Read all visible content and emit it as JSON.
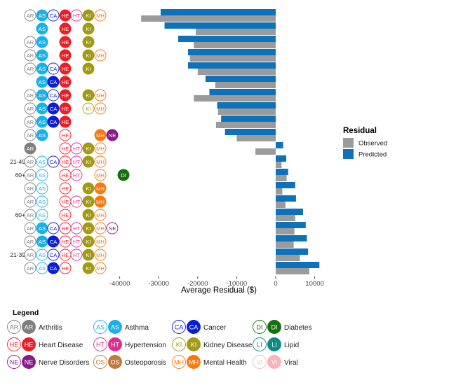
{
  "chart_data": {
    "type": "bar",
    "orientation": "horizontal",
    "xlabel": "Average Residual ($)",
    "xlim": [
      -45000,
      15000
    ],
    "xticks": [
      -40000,
      -30000,
      -20000,
      -10000,
      0,
      10000
    ],
    "xtick_labels": [
      "-40000",
      "-30000",
      "-20000",
      "-10000",
      "0",
      "10000"
    ],
    "grid": false,
    "legend_title": "Residual",
    "legend_position": "right",
    "series": [
      {
        "name": "Observed",
        "color": "#9b9b9b",
        "values": [
          -34500,
          -20500,
          -21000,
          -22000,
          -20000,
          -15500,
          -21000,
          -14800,
          -15300,
          -10000,
          -5200,
          1500,
          2800,
          1700,
          2500,
          5000,
          4800,
          4600,
          6200,
          8600
        ]
      },
      {
        "name": "Predicted",
        "color": "#0e72ba",
        "values": [
          -29500,
          -28500,
          -25000,
          -22500,
          -22500,
          -18000,
          -17000,
          -15000,
          -14000,
          -13000,
          1900,
          2700,
          3200,
          5000,
          5200,
          7000,
          7700,
          8000,
          8300,
          11200
        ]
      }
    ],
    "rows": [
      {
        "age": "",
        "cond": [
          [
            "AR",
            "o"
          ],
          [
            "AS",
            "f"
          ],
          [
            "CA",
            "o"
          ],
          [
            "HE",
            "f"
          ],
          [
            "HT",
            "o"
          ],
          [
            "KI",
            "f"
          ],
          [
            "MH",
            "o"
          ]
        ]
      },
      {
        "age": "",
        "cond": [
          [
            "AS",
            "f"
          ],
          [
            "HE",
            "f"
          ],
          [
            "KI",
            "f"
          ]
        ]
      },
      {
        "age": "",
        "cond": [
          [
            "AR",
            "o"
          ],
          [
            "AS",
            "f"
          ],
          [
            "HE",
            "f"
          ],
          [
            "KI",
            "f"
          ]
        ]
      },
      {
        "age": "",
        "cond": [
          [
            "AR",
            "o"
          ],
          [
            "AS",
            "f"
          ],
          [
            "HE",
            "f"
          ],
          [
            "KI",
            "f"
          ],
          [
            "MH",
            "o"
          ]
        ]
      },
      {
        "age": "",
        "cond": [
          [
            "AR",
            "o"
          ],
          [
            "AS",
            "f"
          ],
          [
            "CA",
            "o"
          ],
          [
            "HE",
            "f"
          ],
          [
            "KI",
            "f"
          ]
        ]
      },
      {
        "age": "",
        "cond": [
          [
            "AS",
            "f"
          ],
          [
            "CA",
            "f"
          ],
          [
            "HE",
            "f"
          ]
        ]
      },
      {
        "age": "",
        "cond": [
          [
            "AR",
            "o"
          ],
          [
            "AS",
            "f"
          ],
          [
            "CA",
            "o"
          ],
          [
            "HE",
            "f"
          ],
          [
            "KI",
            "f"
          ],
          [
            "MH",
            "o"
          ]
        ]
      },
      {
        "age": "",
        "cond": [
          [
            "AR",
            "o"
          ],
          [
            "AS",
            "f"
          ],
          [
            "CA",
            "f"
          ],
          [
            "HE",
            "f"
          ],
          [
            "KI",
            "o"
          ],
          [
            "MH",
            "o"
          ]
        ]
      },
      {
        "age": "",
        "cond": [
          [
            "AR",
            "o"
          ],
          [
            "AS",
            "f"
          ],
          [
            "CA",
            "f"
          ],
          [
            "HE",
            "f"
          ]
        ]
      },
      {
        "age": "",
        "cond": [
          [
            "AR",
            "o"
          ],
          [
            "AS",
            "f"
          ],
          [
            "HE",
            "o"
          ],
          [
            "MH",
            "f"
          ],
          [
            "NE",
            "f"
          ]
        ]
      },
      {
        "age": "",
        "cond": [
          [
            "AR",
            "f"
          ],
          [
            "HE",
            "o"
          ],
          [
            "HT",
            "o"
          ],
          [
            "KI",
            "f"
          ],
          [
            "MH",
            "o"
          ]
        ]
      },
      {
        "age": "21-49",
        "cond": [
          [
            "AR",
            "o"
          ],
          [
            "AS",
            "o"
          ],
          [
            "CA",
            "o"
          ],
          [
            "HE",
            "o"
          ],
          [
            "HT",
            "o"
          ],
          [
            "KI",
            "f"
          ],
          [
            "MH",
            "o"
          ]
        ]
      },
      {
        "age": "60+",
        "cond": [
          [
            "AR",
            "o"
          ],
          [
            "AS",
            "o"
          ],
          [
            "HE",
            "o"
          ],
          [
            "HT",
            "o"
          ],
          [
            "MH",
            "o"
          ],
          [
            "DI",
            "f"
          ]
        ]
      },
      {
        "age": "",
        "cond": [
          [
            "AR",
            "o"
          ],
          [
            "AS",
            "o"
          ],
          [
            "HE",
            "o"
          ],
          [
            "KI",
            "f"
          ],
          [
            "MH",
            "f"
          ]
        ]
      },
      {
        "age": "",
        "cond": [
          [
            "AR",
            "o"
          ],
          [
            "AS",
            "o"
          ],
          [
            "HE",
            "o"
          ],
          [
            "HT",
            "o"
          ],
          [
            "KI",
            "f"
          ],
          [
            "MH",
            "f"
          ]
        ]
      },
      {
        "age": "60+",
        "cond": [
          [
            "AR",
            "o"
          ],
          [
            "AS",
            "o"
          ],
          [
            "HE",
            "o"
          ],
          [
            "KI",
            "f"
          ],
          [
            "MH",
            "o"
          ]
        ]
      },
      {
        "age": "",
        "cond": [
          [
            "AR",
            "o"
          ],
          [
            "AS",
            "f"
          ],
          [
            "CA",
            "o"
          ],
          [
            "HE",
            "o"
          ],
          [
            "HT",
            "o"
          ],
          [
            "KI",
            "f"
          ],
          [
            "MH",
            "o"
          ],
          [
            "NE",
            "o"
          ]
        ]
      },
      {
        "age": "",
        "cond": [
          [
            "AR",
            "o"
          ],
          [
            "AS",
            "f"
          ],
          [
            "CA",
            "f"
          ],
          [
            "HE",
            "o"
          ],
          [
            "HT",
            "o"
          ],
          [
            "KI",
            "f"
          ],
          [
            "MH",
            "o"
          ]
        ]
      },
      {
        "age": "21-39",
        "cond": [
          [
            "AR",
            "o"
          ],
          [
            "AS",
            "o"
          ],
          [
            "CA",
            "o"
          ],
          [
            "HE",
            "o"
          ],
          [
            "HT",
            "o"
          ],
          [
            "KI",
            "f"
          ],
          [
            "MH",
            "o"
          ]
        ]
      },
      {
        "age": "",
        "cond": [
          [
            "AR",
            "o"
          ],
          [
            "AS",
            "o"
          ],
          [
            "CA",
            "f"
          ],
          [
            "HE",
            "o"
          ],
          [
            "KI",
            "f"
          ],
          [
            "MH",
            "o"
          ]
        ]
      }
    ]
  },
  "conditions": [
    {
      "code": "AR",
      "name": "Arthritis",
      "color": "#7f7f7f"
    },
    {
      "code": "AS",
      "name": "Asthma",
      "color": "#1ab0e8"
    },
    {
      "code": "CA",
      "name": "Cancer",
      "color": "#0a1ed8"
    },
    {
      "code": "DI",
      "name": "Diabetes",
      "color": "#17700f"
    },
    {
      "code": "HE",
      "name": "Heart Disease",
      "color": "#ee1c25"
    },
    {
      "code": "HT",
      "name": "Hypertension",
      "color": "#da2f8f"
    },
    {
      "code": "KI",
      "name": "Kidney Disease",
      "color": "#a19a13"
    },
    {
      "code": "LI",
      "name": "Lipid",
      "color": "#0b8a86"
    },
    {
      "code": "NE",
      "name": "Nerve Disorders",
      "color": "#8a1a8a"
    },
    {
      "code": "OS",
      "name": "Osteoporosis",
      "color": "#c07a3e"
    },
    {
      "code": "MH",
      "name": "Mental Health",
      "color": "#f7790f"
    },
    {
      "code": "VI",
      "name": "Viral",
      "color": "#f5b6bb"
    }
  ],
  "condition_legend": {
    "title": "Legend",
    "order": [
      "AR",
      "AS",
      "CA",
      "DI",
      "HE",
      "HT",
      "KI",
      "LI",
      "NE",
      "OS",
      "MH",
      "VI"
    ]
  }
}
